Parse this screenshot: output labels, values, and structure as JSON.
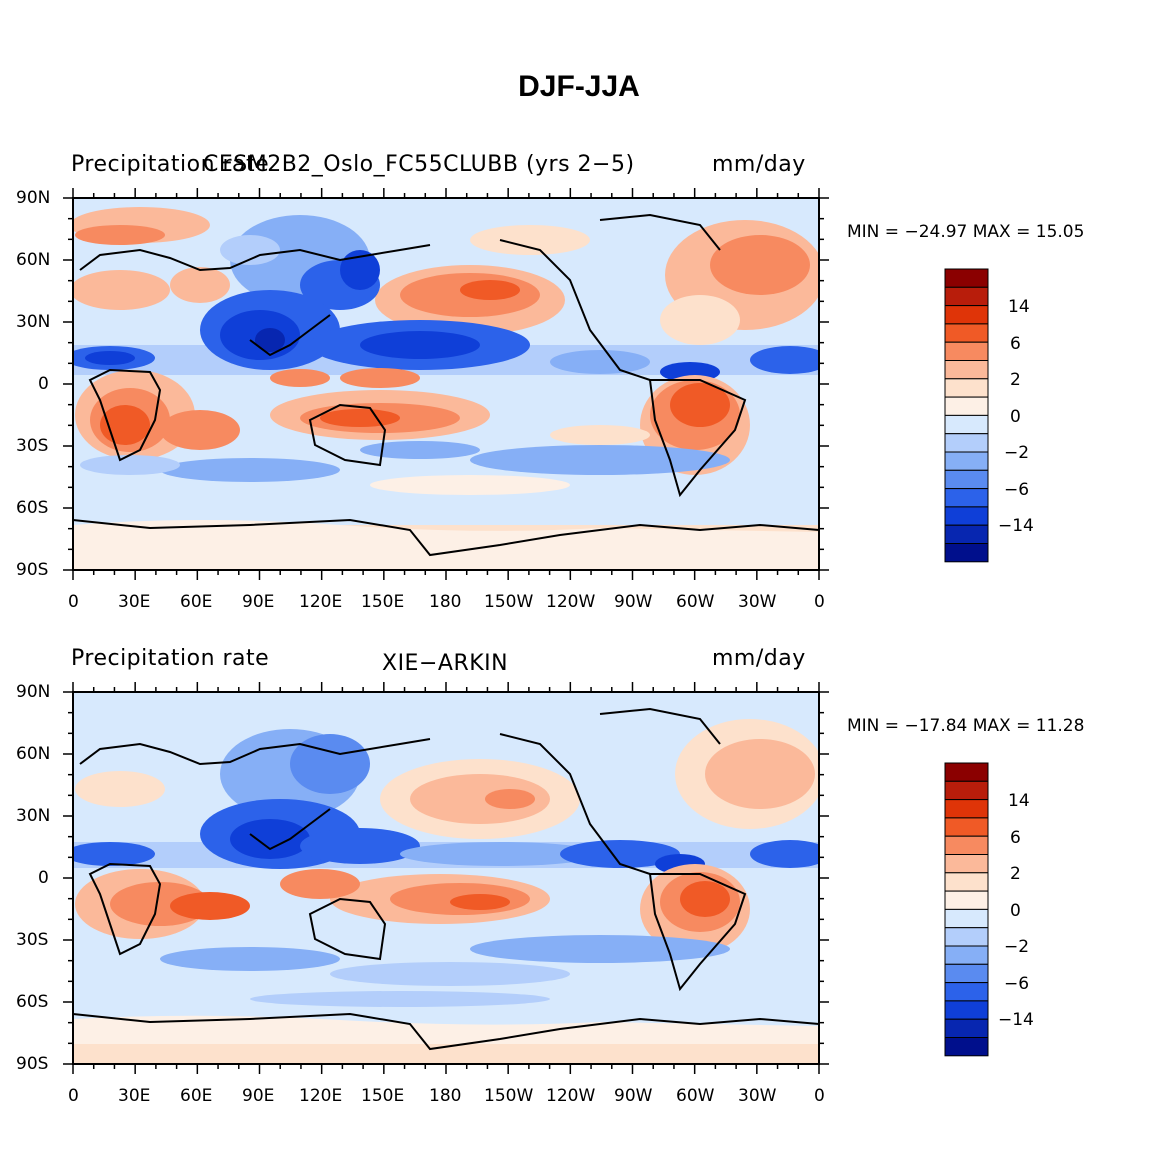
{
  "title": "DJF-JJA",
  "panels": [
    {
      "left_title": "Precipitation rate",
      "center_title": "CESM2B2_Oslo_FC55CLUBB (yrs 2-5)",
      "right_title": "mm/day",
      "min_max": "MIN = -24.97 MAX =  15.05"
    },
    {
      "left_title": "Precipitation rate",
      "center_title": "XIE-ARKIN",
      "right_title": "mm/day",
      "min_max": "MIN = -17.84 MAX =  11.28"
    }
  ],
  "axes": {
    "lat_labels": [
      "90N",
      "60N",
      "30N",
      "0",
      "30S",
      "60S",
      "90S"
    ],
    "lon_labels": [
      "0",
      "30E",
      "60E",
      "90E",
      "120E",
      "150E",
      "180",
      "150W",
      "120W",
      "90W",
      "60W",
      "30W",
      "0"
    ]
  },
  "colorbar": {
    "labels": [
      "14",
      "6",
      "2",
      "0",
      "-2",
      "-6",
      "-14"
    ],
    "colors": [
      "#8b0000",
      "#b81d0b",
      "#df3408",
      "#f05a26",
      "#f78a60",
      "#fbb99a",
      "#fde1cc",
      "#fdf0e6",
      "#d7e9fd",
      "#b3cefb",
      "#86aff6",
      "#5a8bf0",
      "#2c62ea",
      "#0f3fd8",
      "#0726b0",
      "#000f8c"
    ]
  }
}
